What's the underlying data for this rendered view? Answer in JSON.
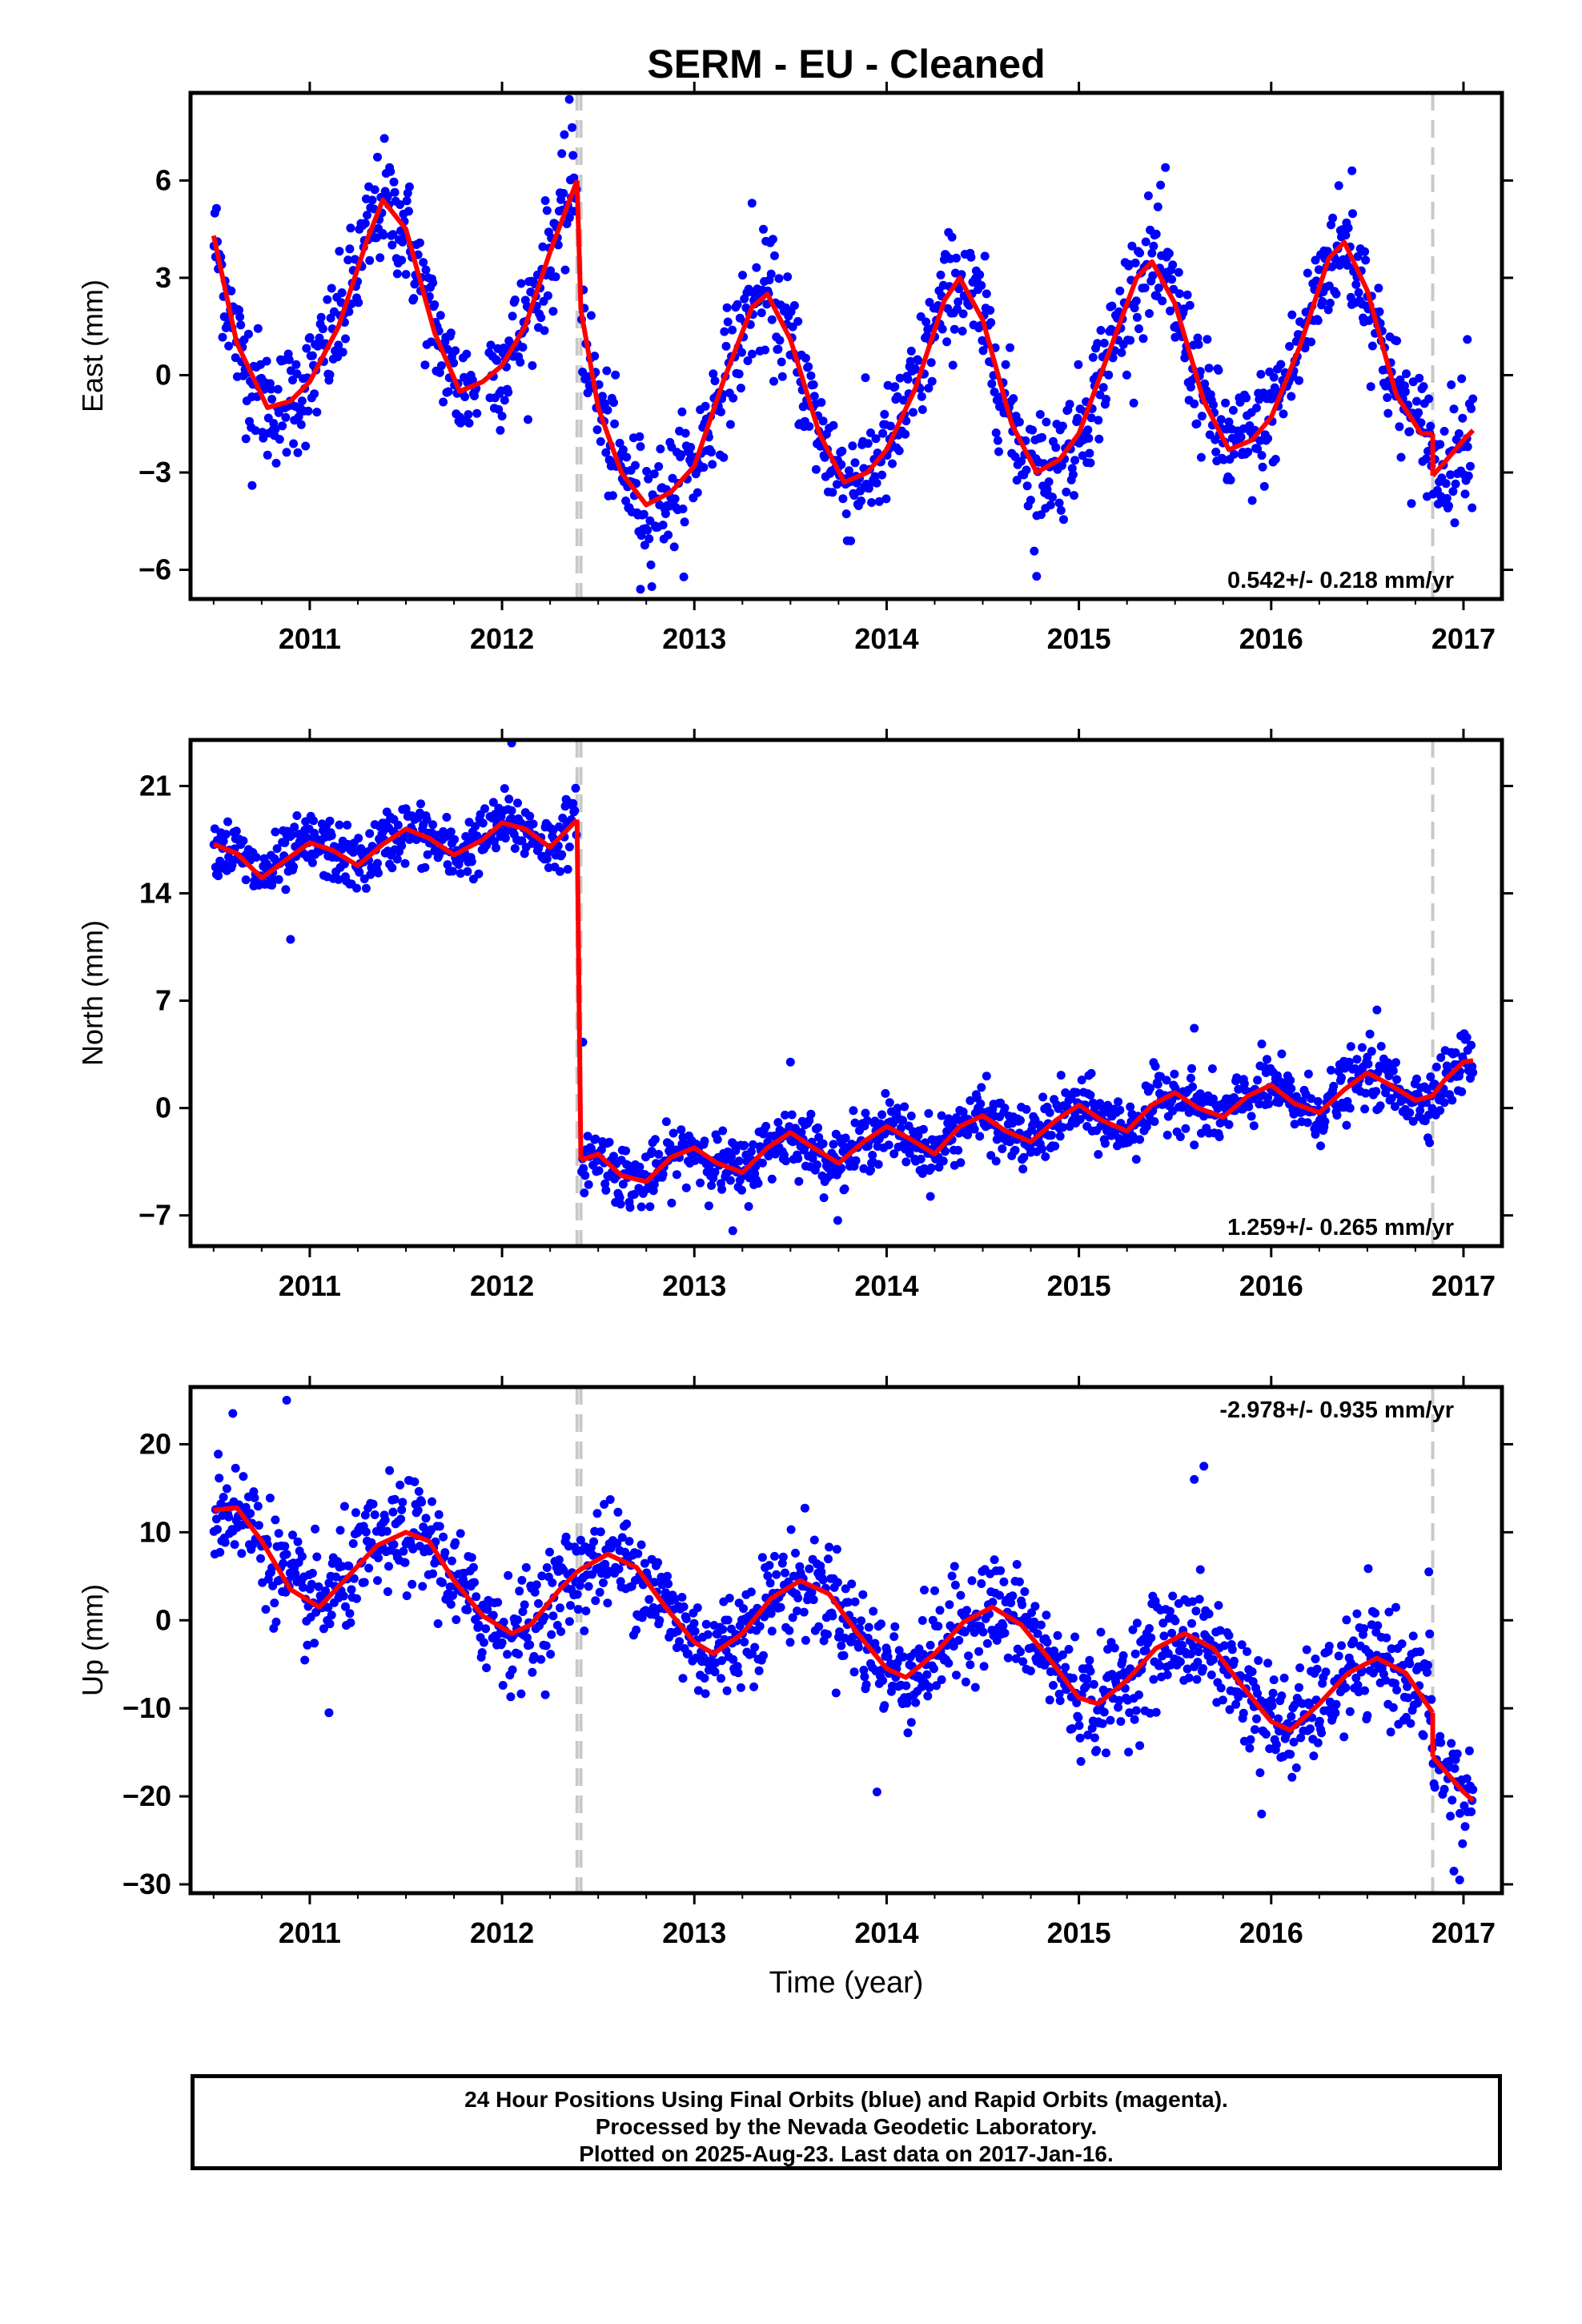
{
  "title": "SERM  - EU - Cleaned",
  "xlabel": "Time (year)",
  "footer": [
    "24 Hour Positions Using Final Orbits (blue) and Rapid Orbits (magenta).",
    "Processed by the Nevada Geodetic Laboratory.",
    "Plotted on 2025-Aug-23. Last data on 2017-Jan-16."
  ],
  "colors": {
    "points": "#0000ff",
    "model": "#ff0000",
    "steps": "#c8c8c8",
    "frame": "#000000"
  },
  "chart_data": [
    {
      "type": "scatter",
      "ylabel": "East (mm)",
      "rate_label": "0.542+/- 0.218 mm/yr",
      "rate_position": "bottom-right",
      "xlim": [
        2010.38,
        2017.2
      ],
      "ylim": [
        -6.9,
        8.7
      ],
      "yticks": [
        6,
        3,
        0,
        -3,
        -6
      ],
      "ytick_labels": [
        "6",
        "3",
        "0",
        "−3",
        "−6"
      ],
      "xticks": [
        2011,
        2012,
        2013,
        2014,
        2015,
        2016,
        2017
      ],
      "xtick_labels": [
        "2011",
        "2012",
        "2013",
        "2014",
        "2015",
        "2016",
        "2017"
      ],
      "steps": [
        2012.39,
        2012.41,
        2016.84
      ],
      "model": {
        "segments": [
          {
            "x": [
              2010.5,
              2010.62,
              2010.78,
              2010.9,
              2011.0,
              2011.15,
              2011.3,
              2011.38,
              2011.5,
              2011.65,
              2011.78,
              2011.9,
              2012.0,
              2012.12,
              2012.25,
              2012.39
            ],
            "y": [
              4.3,
              1.0,
              -1.0,
              -0.8,
              -0.2,
              1.5,
              4.2,
              5.4,
              4.5,
              1.3,
              -0.5,
              -0.2,
              0.3,
              1.5,
              3.8,
              6.0
            ]
          },
          {
            "x": [
              2012.41,
              2012.5,
              2012.62,
              2012.75,
              2012.88,
              2013.0,
              2013.15,
              2013.3,
              2013.38,
              2013.5,
              2013.65,
              2013.78,
              2013.9,
              2014.0,
              2014.15,
              2014.3,
              2014.38,
              2014.5,
              2014.65,
              2014.78,
              2014.9,
              2015.0,
              2015.15,
              2015.3,
              2015.38,
              2015.5,
              2015.65,
              2015.78,
              2015.9,
              2016.0,
              2016.15,
              2016.3,
              2016.38,
              2016.5,
              2016.65,
              2016.78,
              2016.84
            ],
            "y": [
              2.0,
              -1.0,
              -3.0,
              -4.0,
              -3.6,
              -2.8,
              -0.2,
              2.1,
              2.5,
              1.1,
              -1.8,
              -3.3,
              -3.0,
              -2.3,
              -0.4,
              2.3,
              3.0,
              1.7,
              -1.5,
              -3.0,
              -2.6,
              -1.8,
              0.6,
              3.0,
              3.5,
              2.2,
              -0.8,
              -2.3,
              -2.0,
              -1.3,
              0.9,
              3.6,
              4.1,
              2.6,
              -0.6,
              -1.8,
              -1.8
            ]
          },
          {
            "x": [
              2016.84,
              2016.9,
              2017.0,
              2017.05
            ],
            "y": [
              -3.1,
              -2.7,
              -2.0,
              -1.7
            ]
          }
        ]
      },
      "scatter_sd": 0.9,
      "outliers": [
        [
          2012.35,
          8.5
        ],
        [
          2012.72,
          -6.6
        ],
        [
          2013.3,
          5.3
        ],
        [
          2015.45,
          6.4
        ],
        [
          2016.42,
          6.3
        ],
        [
          2014.78,
          -6.2
        ],
        [
          2010.7,
          -3.4
        ],
        [
          2017.02,
          1.1
        ]
      ]
    },
    {
      "type": "scatter",
      "ylabel": "North (mm)",
      "rate_label": "1.259+/- 0.265 mm/yr",
      "rate_position": "bottom-right",
      "xlim": [
        2010.38,
        2017.2
      ],
      "ylim": [
        -9,
        24
      ],
      "yticks": [
        21,
        14,
        7,
        0,
        -7
      ],
      "ytick_labels": [
        "21",
        "14",
        "7",
        "0",
        "−7"
      ],
      "xticks": [
        2011,
        2012,
        2013,
        2014,
        2015,
        2016,
        2017
      ],
      "xtick_labels": [
        "2011",
        "2012",
        "2013",
        "2014",
        "2015",
        "2016",
        "2017"
      ],
      "steps": [
        2012.39,
        2012.41,
        2016.84
      ],
      "model": {
        "segments": [
          {
            "x": [
              2010.5,
              2010.62,
              2010.75,
              2010.9,
              2011.0,
              2011.12,
              2011.25,
              2011.38,
              2011.5,
              2011.62,
              2011.75,
              2011.9,
              2012.0,
              2012.12,
              2012.25,
              2012.39
            ],
            "y": [
              17.2,
              16.6,
              15.0,
              16.4,
              17.3,
              16.8,
              15.8,
              17.2,
              18.2,
              17.6,
              16.5,
              17.5,
              18.6,
              18.2,
              17.0,
              18.8
            ]
          },
          {
            "x": [
              2012.41,
              2012.5,
              2012.62,
              2012.75,
              2012.88,
              2013.0,
              2013.12,
              2013.25,
              2013.38,
              2013.5,
              2013.62,
              2013.75,
              2013.88,
              2014.0,
              2014.12,
              2014.25,
              2014.38,
              2014.5,
              2014.62,
              2014.75,
              2014.88,
              2015.0,
              2015.12,
              2015.25,
              2015.38,
              2015.5,
              2015.62,
              2015.75,
              2015.88,
              2016.0,
              2016.12,
              2016.25,
              2016.38,
              2016.5,
              2016.62,
              2016.75,
              2016.84,
              2016.9,
              2017.0,
              2017.05
            ],
            "y": [
              -3.4,
              -3.0,
              -4.4,
              -4.8,
              -3.2,
              -2.6,
              -3.6,
              -4.2,
              -2.6,
              -1.6,
              -2.6,
              -3.6,
              -2.2,
              -1.2,
              -2.0,
              -3.0,
              -1.2,
              -0.5,
              -1.5,
              -2.2,
              -0.8,
              0.2,
              -0.8,
              -1.5,
              0.2,
              1.0,
              0.0,
              -0.6,
              0.8,
              1.5,
              0.3,
              -0.3,
              1.2,
              2.3,
              1.5,
              0.5,
              0.8,
              1.8,
              3.0,
              3.1
            ]
          }
        ]
      },
      "scatter_sd": 1.0,
      "outliers": [
        [
          2012.05,
          23.8
        ],
        [
          2010.9,
          11.0
        ],
        [
          2013.2,
          -8.0
        ],
        [
          2013.5,
          3.0
        ],
        [
          2015.6,
          5.2
        ],
        [
          2016.55,
          6.4
        ],
        [
          2012.42,
          4.3
        ]
      ]
    },
    {
      "type": "scatter",
      "ylabel": "Up (mm)",
      "rate_label": "-2.978+/- 0.935 mm/yr",
      "rate_position": "top-right",
      "xlim": [
        2010.38,
        2017.2
      ],
      "ylim": [
        -31,
        26.5
      ],
      "yticks": [
        20,
        10,
        0,
        -10,
        -20,
        -30
      ],
      "ytick_labels": [
        "20",
        "10",
        "0",
        "−10",
        "−20",
        "−30"
      ],
      "xticks": [
        2011,
        2012,
        2013,
        2014,
        2015,
        2016,
        2017
      ],
      "xtick_labels": [
        "2011",
        "2012",
        "2013",
        "2014",
        "2015",
        "2016",
        "2017"
      ],
      "steps": [
        2012.39,
        2012.41,
        2016.84
      ],
      "model": {
        "segments": [
          {
            "x": [
              2010.5,
              2010.62,
              2010.75,
              2010.9,
              2011.05,
              2011.2,
              2011.35,
              2011.5,
              2011.62,
              2011.75,
              2011.9,
              2012.05,
              2012.15,
              2012.3,
              2012.39,
              2012.41,
              2012.55,
              2012.7,
              2012.85,
              2013.0,
              2013.1,
              2013.25,
              2013.4,
              2013.55,
              2013.7,
              2013.85,
              2014.0,
              2014.1,
              2014.25,
              2014.4,
              2014.55,
              2014.7,
              2014.85,
              2015.0,
              2015.1,
              2015.25,
              2015.4,
              2015.55,
              2015.7,
              2015.85,
              2016.0,
              2016.1,
              2016.25,
              2016.4,
              2016.55,
              2016.7,
              2016.84
            ],
            "y": [
              12.5,
              12.8,
              9.0,
              3.5,
              1.5,
              5.0,
              8.5,
              10.0,
              9.0,
              4.5,
              0.5,
              -1.5,
              -0.5,
              3.5,
              5.5,
              5.8,
              7.5,
              6.0,
              1.5,
              -2.5,
              -3.8,
              -1.5,
              2.5,
              4.5,
              3.0,
              -1.5,
              -5.5,
              -6.5,
              -3.8,
              -0.2,
              1.5,
              -0.5,
              -4.5,
              -8.8,
              -9.5,
              -6.8,
              -3.2,
              -1.5,
              -3.2,
              -7.5,
              -11.5,
              -12.5,
              -9.5,
              -6.0,
              -4.3,
              -6.0,
              -10.5
            ]
          },
          {
            "x": [
              2016.84,
              2016.9,
              2017.0,
              2017.05
            ],
            "y": [
              -15.5,
              -17.0,
              -19.5,
              -20.5
            ]
          }
        ]
      },
      "scatter_sd": 3.0,
      "outliers": [
        [
          2010.6,
          23.5
        ],
        [
          2010.88,
          25.0
        ],
        [
          2015.65,
          17.5
        ],
        [
          2015.6,
          16.0
        ],
        [
          2016.82,
          5.5
        ],
        [
          2016.98,
          -29.5
        ],
        [
          2016.95,
          -28.5
        ],
        [
          2011.1,
          -10.5
        ],
        [
          2013.95,
          -19.5
        ],
        [
          2015.95,
          -22.0
        ]
      ]
    }
  ]
}
